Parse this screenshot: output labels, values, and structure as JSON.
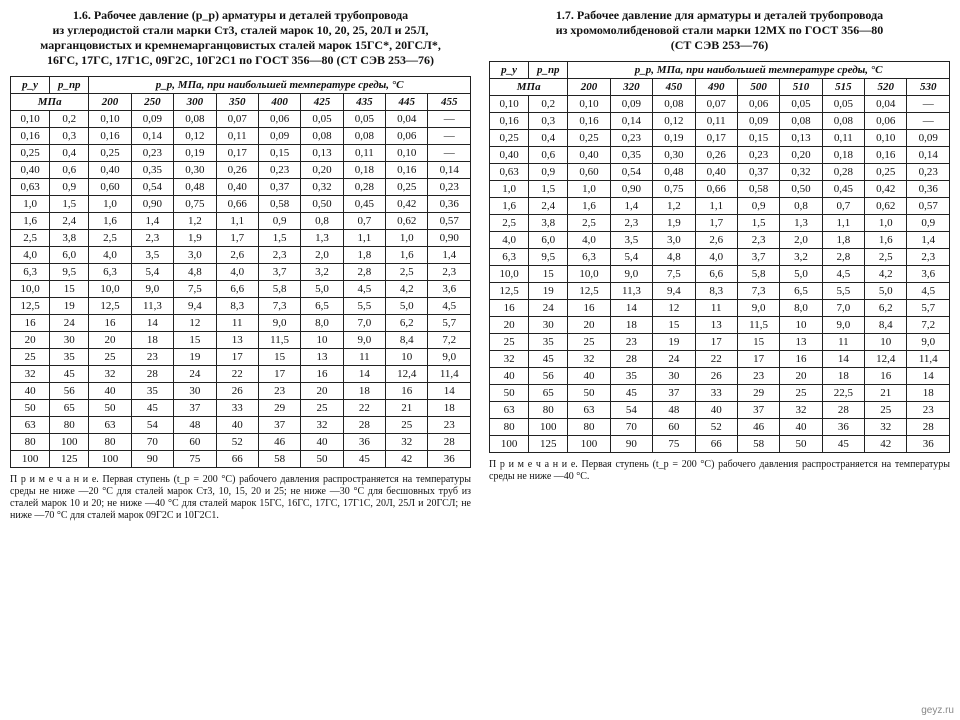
{
  "watermark": "geyz.ru",
  "left": {
    "title": "1.6. Рабочее давление (p_p) арматуры и деталей трубопровода\nиз углеродистой стали марки Ст3, сталей марок 10, 20, 25, 20Л и 25Л,\nмарганцовистых и кремнемарганцовистых сталей марок 15ГС*, 20ГСЛ*,\n16ГС, 17ГС, 17Г1С, 09Г2С, 10Г2С1 по ГОСТ 356—80 (СТ СЭВ 253—76)",
    "head_py": "p_у",
    "head_ppr": "p_пр",
    "head_mpa": "МПа",
    "head_temp": "p_p, МПа, при наибольшей температуре среды, °С",
    "temps": [
      "200",
      "250",
      "300",
      "350",
      "400",
      "425",
      "435",
      "445",
      "455"
    ],
    "rows": [
      [
        "0,10",
        "0,2",
        "0,10",
        "0,09",
        "0,08",
        "0,07",
        "0,06",
        "0,05",
        "0,05",
        "0,04",
        "—"
      ],
      [
        "0,16",
        "0,3",
        "0,16",
        "0,14",
        "0,12",
        "0,11",
        "0,09",
        "0,08",
        "0,08",
        "0,06",
        "—"
      ],
      [
        "0,25",
        "0,4",
        "0,25",
        "0,23",
        "0,19",
        "0,17",
        "0,15",
        "0,13",
        "0,11",
        "0,10",
        "—"
      ],
      [
        "0,40",
        "0,6",
        "0,40",
        "0,35",
        "0,30",
        "0,26",
        "0,23",
        "0,20",
        "0,18",
        "0,16",
        "0,14"
      ],
      [
        "0,63",
        "0,9",
        "0,60",
        "0,54",
        "0,48",
        "0,40",
        "0,37",
        "0,32",
        "0,28",
        "0,25",
        "0,23"
      ],
      [
        "1,0",
        "1,5",
        "1,0",
        "0,90",
        "0,75",
        "0,66",
        "0,58",
        "0,50",
        "0,45",
        "0,42",
        "0,36"
      ],
      [
        "1,6",
        "2,4",
        "1,6",
        "1,4",
        "1,2",
        "1,1",
        "0,9",
        "0,8",
        "0,7",
        "0,62",
        "0,57"
      ],
      [
        "2,5",
        "3,8",
        "2,5",
        "2,3",
        "1,9",
        "1,7",
        "1,5",
        "1,3",
        "1,1",
        "1,0",
        "0,90"
      ],
      [
        "4,0",
        "6,0",
        "4,0",
        "3,5",
        "3,0",
        "2,6",
        "2,3",
        "2,0",
        "1,8",
        "1,6",
        "1,4"
      ],
      [
        "6,3",
        "9,5",
        "6,3",
        "5,4",
        "4,8",
        "4,0",
        "3,7",
        "3,2",
        "2,8",
        "2,5",
        "2,3"
      ],
      [
        "10,0",
        "15",
        "10,0",
        "9,0",
        "7,5",
        "6,6",
        "5,8",
        "5,0",
        "4,5",
        "4,2",
        "3,6"
      ],
      [
        "12,5",
        "19",
        "12,5",
        "11,3",
        "9,4",
        "8,3",
        "7,3",
        "6,5",
        "5,5",
        "5,0",
        "4,5"
      ],
      [
        "16",
        "24",
        "16",
        "14",
        "12",
        "11",
        "9,0",
        "8,0",
        "7,0",
        "6,2",
        "5,7"
      ],
      [
        "20",
        "30",
        "20",
        "18",
        "15",
        "13",
        "11,5",
        "10",
        "9,0",
        "8,4",
        "7,2"
      ],
      [
        "25",
        "35",
        "25",
        "23",
        "19",
        "17",
        "15",
        "13",
        "11",
        "10",
        "9,0"
      ],
      [
        "32",
        "45",
        "32",
        "28",
        "24",
        "22",
        "17",
        "16",
        "14",
        "12,4",
        "11,4"
      ],
      [
        "40",
        "56",
        "40",
        "35",
        "30",
        "26",
        "23",
        "20",
        "18",
        "16",
        "14"
      ],
      [
        "50",
        "65",
        "50",
        "45",
        "37",
        "33",
        "29",
        "25",
        "22",
        "21",
        "18"
      ],
      [
        "63",
        "80",
        "63",
        "54",
        "48",
        "40",
        "37",
        "32",
        "28",
        "25",
        "23"
      ],
      [
        "80",
        "100",
        "80",
        "70",
        "60",
        "52",
        "46",
        "40",
        "36",
        "32",
        "28"
      ],
      [
        "100",
        "125",
        "100",
        "90",
        "75",
        "66",
        "58",
        "50",
        "45",
        "42",
        "36"
      ]
    ],
    "note": "П р и м е ч а н и е. Первая ступень (t_p = 200 °С) рабочего давления распространяется на температуры среды не ниже —20 °С для сталей марок Ст3, 10, 15, 20 и 25; не ниже —30 °С для бесшовных труб из сталей марок 10 и 20; не ниже —40 °С для сталей марок 15ГС, 16ГС, 17ГС, 17Г1С, 20Л, 25Л и 20ГСЛ; не ниже —70 °С для сталей марок 09Г2С и 10Г2С1."
  },
  "right": {
    "title": "1.7. Рабочее давление для арматуры и деталей трубопровода\nиз хромомолибденовой стали марки 12МХ по ГОСТ 356—80\n(СТ СЭВ 253—76)",
    "head_py": "p_у",
    "head_ppr": "p_пр",
    "head_mpa": "МПа",
    "head_temp": "p_p, МПа, при наибольшей температуре среды, °С",
    "temps": [
      "200",
      "320",
      "450",
      "490",
      "500",
      "510",
      "515",
      "520",
      "530"
    ],
    "rows": [
      [
        "0,10",
        "0,2",
        "0,10",
        "0,09",
        "0,08",
        "0,07",
        "0,06",
        "0,05",
        "0,05",
        "0,04",
        "—"
      ],
      [
        "0,16",
        "0,3",
        "0,16",
        "0,14",
        "0,12",
        "0,11",
        "0,09",
        "0,08",
        "0,08",
        "0,06",
        "—"
      ],
      [
        "0,25",
        "0,4",
        "0,25",
        "0,23",
        "0,19",
        "0,17",
        "0,15",
        "0,13",
        "0,11",
        "0,10",
        "0,09"
      ],
      [
        "0,40",
        "0,6",
        "0,40",
        "0,35",
        "0,30",
        "0,26",
        "0,23",
        "0,20",
        "0,18",
        "0,16",
        "0,14"
      ],
      [
        "0,63",
        "0,9",
        "0,60",
        "0,54",
        "0,48",
        "0,40",
        "0,37",
        "0,32",
        "0,28",
        "0,25",
        "0,23"
      ],
      [
        "1,0",
        "1,5",
        "1,0",
        "0,90",
        "0,75",
        "0,66",
        "0,58",
        "0,50",
        "0,45",
        "0,42",
        "0,36"
      ],
      [
        "1,6",
        "2,4",
        "1,6",
        "1,4",
        "1,2",
        "1,1",
        "0,9",
        "0,8",
        "0,7",
        "0,62",
        "0,57"
      ],
      [
        "2,5",
        "3,8",
        "2,5",
        "2,3",
        "1,9",
        "1,7",
        "1,5",
        "1,3",
        "1,1",
        "1,0",
        "0,9"
      ],
      [
        "4,0",
        "6,0",
        "4,0",
        "3,5",
        "3,0",
        "2,6",
        "2,3",
        "2,0",
        "1,8",
        "1,6",
        "1,4"
      ],
      [
        "6,3",
        "9,5",
        "6,3",
        "5,4",
        "4,8",
        "4,0",
        "3,7",
        "3,2",
        "2,8",
        "2,5",
        "2,3"
      ],
      [
        "10,0",
        "15",
        "10,0",
        "9,0",
        "7,5",
        "6,6",
        "5,8",
        "5,0",
        "4,5",
        "4,2",
        "3,6"
      ],
      [
        "12,5",
        "19",
        "12,5",
        "11,3",
        "9,4",
        "8,3",
        "7,3",
        "6,5",
        "5,5",
        "5,0",
        "4,5"
      ],
      [
        "16",
        "24",
        "16",
        "14",
        "12",
        "11",
        "9,0",
        "8,0",
        "7,0",
        "6,2",
        "5,7"
      ],
      [
        "20",
        "30",
        "20",
        "18",
        "15",
        "13",
        "11,5",
        "10",
        "9,0",
        "8,4",
        "7,2"
      ],
      [
        "25",
        "35",
        "25",
        "23",
        "19",
        "17",
        "15",
        "13",
        "11",
        "10",
        "9,0"
      ],
      [
        "32",
        "45",
        "32",
        "28",
        "24",
        "22",
        "17",
        "16",
        "14",
        "12,4",
        "11,4"
      ],
      [
        "40",
        "56",
        "40",
        "35",
        "30",
        "26",
        "23",
        "20",
        "18",
        "16",
        "14"
      ],
      [
        "50",
        "65",
        "50",
        "45",
        "37",
        "33",
        "29",
        "25",
        "22,5",
        "21",
        "18"
      ],
      [
        "63",
        "80",
        "63",
        "54",
        "48",
        "40",
        "37",
        "32",
        "28",
        "25",
        "23"
      ],
      [
        "80",
        "100",
        "80",
        "70",
        "60",
        "52",
        "46",
        "40",
        "36",
        "32",
        "28"
      ],
      [
        "100",
        "125",
        "100",
        "90",
        "75",
        "66",
        "58",
        "50",
        "45",
        "42",
        "36"
      ]
    ],
    "note": "П р и м е ч а н и е. Первая ступень (t_p = 200 °С) рабочего давления распространяется на температуры среды не ниже —40 °С."
  },
  "style": {
    "font_family": "Times New Roman",
    "title_fontsize_pt": 12,
    "body_fontsize_pt": 11,
    "note_fontsize_pt": 10,
    "text_color": "#111111",
    "border_color": "#222222",
    "background_color": "#ffffff"
  }
}
